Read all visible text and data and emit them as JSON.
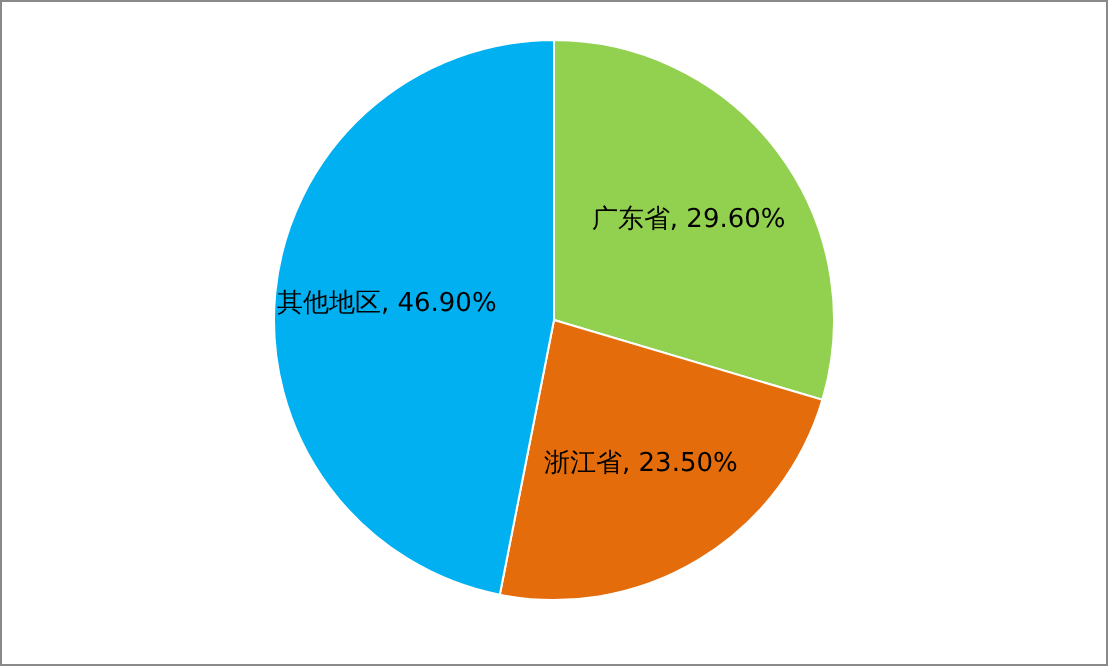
{
  "chart_data": {
    "type": "pie",
    "categories": [
      "广东省",
      "浙江省",
      "其他地区"
    ],
    "values": [
      29.6,
      23.5,
      46.9
    ],
    "value_labels": [
      "29.60%",
      "23.50%",
      "46.90%"
    ],
    "colors": [
      "#92d050",
      "#e46c0a",
      "#00b0f0"
    ],
    "legend": false
  }
}
